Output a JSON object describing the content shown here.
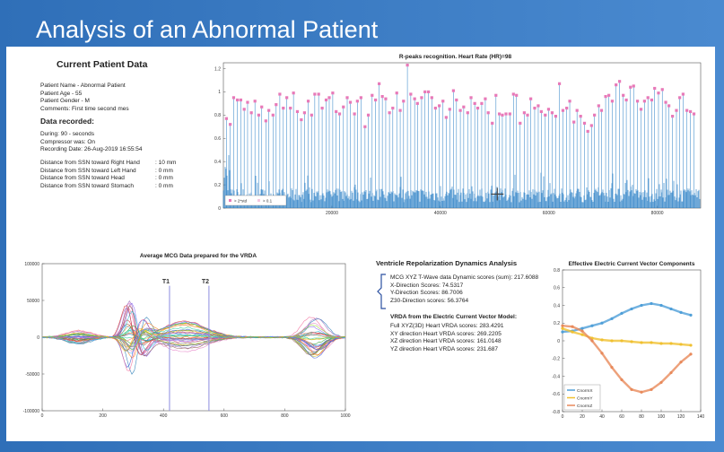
{
  "slide": {
    "title": "Analysis of an Abnormal Patient"
  },
  "patient": {
    "heading": "Current Patient Data",
    "lines": [
      "Patient Name - Abnormal Patient",
      "Patient Age - 55",
      "Patient Gender - M",
      "Comments: First time second mes"
    ]
  },
  "recorded": {
    "heading": "Data recorded:",
    "lines": [
      "During: 90 - seconds",
      "Compressor was: On",
      "Recording Date: 26-Aug-2019 16:55:54"
    ],
    "distances": [
      {
        "label": "Distance from SSN toward Right Hand",
        "value": ": 10 mm"
      },
      {
        "label": "Distance from SSN toward Left Hand",
        "value": ": 0 mm"
      },
      {
        "label": "Distance from SSN toward Head",
        "value": ": 0 mm"
      },
      {
        "label": "Distance from SSN toward Stomach",
        "value": ": 0 mm"
      }
    ]
  },
  "vrda": {
    "heading": "Ventricle Repolarization Dynamics Analysis",
    "scores": [
      "MCG XYZ T-Wave data Dynamic scores (sum): 217.6088",
      "X-Direction Scores: 74.5317",
      "Y-Direction Scores: 86.7006",
      "Z30-Direction scores: 56.3764"
    ],
    "model_heading": "VRDA from the Electric Current Vector Model:",
    "model_scores": [
      "Full XYZ(3D) Heart VRDA scores: 283.4291",
      "XY direction Heart VRDA scores: 269.2205",
      "XZ direction Heart VRDA scores: 161.0148",
      "YZ direction Heart VRDA scores: 231.687"
    ]
  },
  "colors": {
    "bar": "#2a7fc6",
    "peak": "#e879b8",
    "cx": "#4f9fd8",
    "cy": "#f0c030",
    "cz": "#e8895a",
    "marker": "#8c8ce0"
  },
  "chart_data": [
    {
      "type": "line",
      "title": "R-peaks recognition. Heart Rate (HR)=98",
      "xlim": [
        0,
        88000
      ],
      "ylim": [
        0,
        1.25
      ],
      "xticks": [
        20000,
        40000,
        60000,
        80000
      ],
      "xtick_labels": [
        "20000",
        "40000",
        "60000",
        "80000"
      ],
      "yticks": [
        0,
        0.2,
        0.4,
        0.6,
        0.8,
        1,
        1.2
      ],
      "ytick_labels": [
        "0",
        "0.2",
        "0.4",
        "0.6",
        "0.8",
        "1",
        "1.2"
      ],
      "legend": [
        "> 2*std",
        "> 0.1"
      ],
      "legend_position": "bottom-left",
      "peak_values": [
        0.77,
        0.72,
        0.95,
        0.93,
        0.93,
        0.85,
        0.91,
        0.82,
        0.92,
        0.8,
        0.87,
        0.75,
        0.84,
        0.8,
        0.89,
        0.98,
        0.86,
        0.95,
        0.86,
        0.99,
        0.83,
        0.76,
        0.82,
        0.92,
        0.8,
        0.98,
        0.98,
        0.86,
        0.93,
        0.95,
        0.99,
        0.83,
        0.81,
        0.87,
        0.95,
        0.91,
        0.81,
        0.92,
        0.95,
        0.7,
        0.8,
        0.97,
        0.93,
        1.07,
        0.96,
        0.94,
        0.82,
        0.86,
        0.99,
        0.84,
        0.92,
        1.23,
        0.98,
        0.94,
        0.9,
        0.95,
        1.0,
        1.0,
        0.95,
        0.86,
        0.88,
        0.92,
        0.78,
        0.85,
        1.01,
        0.93,
        0.84,
        0.87,
        0.82,
        0.95,
        0.9,
        0.86,
        0.9,
        0.94,
        0.82,
        0.73,
        0.97,
        0.81,
        0.8,
        0.81,
        0.81,
        0.98,
        0.97,
        0.73,
        0.82,
        0.8,
        0.94,
        0.86,
        0.88,
        0.83,
        0.8,
        0.85,
        0.82,
        0.79,
        1.07,
        0.84,
        0.86,
        0.92,
        0.74,
        0.84,
        0.79,
        0.73,
        0.66,
        0.71,
        0.8,
        0.88,
        0.84,
        0.96,
        0.97,
        0.92,
        1.06,
        1.09,
        0.97,
        0.93,
        1.04,
        1.05,
        0.92,
        0.85,
        0.92,
        0.95,
        0.93,
        1.03,
        0.99,
        1.02,
        0.91,
        0.88,
        0.79,
        0.84,
        0.95,
        0.98,
        0.84,
        0.83,
        0.81
      ]
    },
    {
      "type": "line",
      "title": "Average MCG Data prepared for the VRDA",
      "xlim": [
        0,
        1000
      ],
      "ylim": [
        -100000,
        100000
      ],
      "xticks": [
        0,
        200,
        400,
        600,
        800,
        1000
      ],
      "xtick_labels": [
        "0",
        "200",
        "400",
        "600",
        "800",
        "1000"
      ],
      "yticks": [
        -100000,
        -50000,
        0,
        50000,
        100000
      ],
      "ytick_labels": [
        "-100000",
        "-50000",
        "0",
        "50000",
        "100000"
      ],
      "annotations": [
        {
          "label": "T1",
          "x": 420
        },
        {
          "label": "T2",
          "x": 550
        }
      ],
      "series_count": 36
    },
    {
      "type": "line",
      "title": "Effective Electric Current Vector Components",
      "xlim": [
        0,
        140
      ],
      "ylim": [
        -0.8,
        0.8
      ],
      "xticks": [
        0,
        20,
        40,
        60,
        80,
        100,
        120,
        140
      ],
      "xtick_labels": [
        "0",
        "20",
        "40",
        "60",
        "80",
        "100",
        "120",
        "140"
      ],
      "yticks": [
        -0.8,
        -0.6,
        -0.4,
        -0.2,
        0,
        0.2,
        0.4,
        0.6,
        0.8
      ],
      "ytick_labels": [
        "-0.8",
        "-0.6",
        "-0.4",
        "-0.2",
        "0",
        "0.2",
        "0.4",
        "0.6",
        "0.8"
      ],
      "x": [
        0,
        10,
        20,
        30,
        40,
        50,
        60,
        70,
        80,
        90,
        100,
        110,
        120,
        130
      ],
      "series": [
        {
          "name": "CnormX",
          "values": [
            0.1,
            0.11,
            0.14,
            0.17,
            0.2,
            0.25,
            0.31,
            0.36,
            0.4,
            0.42,
            0.4,
            0.36,
            0.32,
            0.29
          ]
        },
        {
          "name": "CnormY",
          "values": [
            0.14,
            0.1,
            0.07,
            0.03,
            0.01,
            0.0,
            0.0,
            -0.01,
            -0.02,
            -0.02,
            -0.03,
            -0.03,
            -0.04,
            -0.05
          ]
        },
        {
          "name": "CnormZ",
          "values": [
            0.17,
            0.16,
            0.11,
            0.0,
            -0.14,
            -0.3,
            -0.44,
            -0.55,
            -0.58,
            -0.55,
            -0.47,
            -0.36,
            -0.24,
            -0.15
          ]
        }
      ],
      "legend_position": "bottom-left"
    }
  ]
}
